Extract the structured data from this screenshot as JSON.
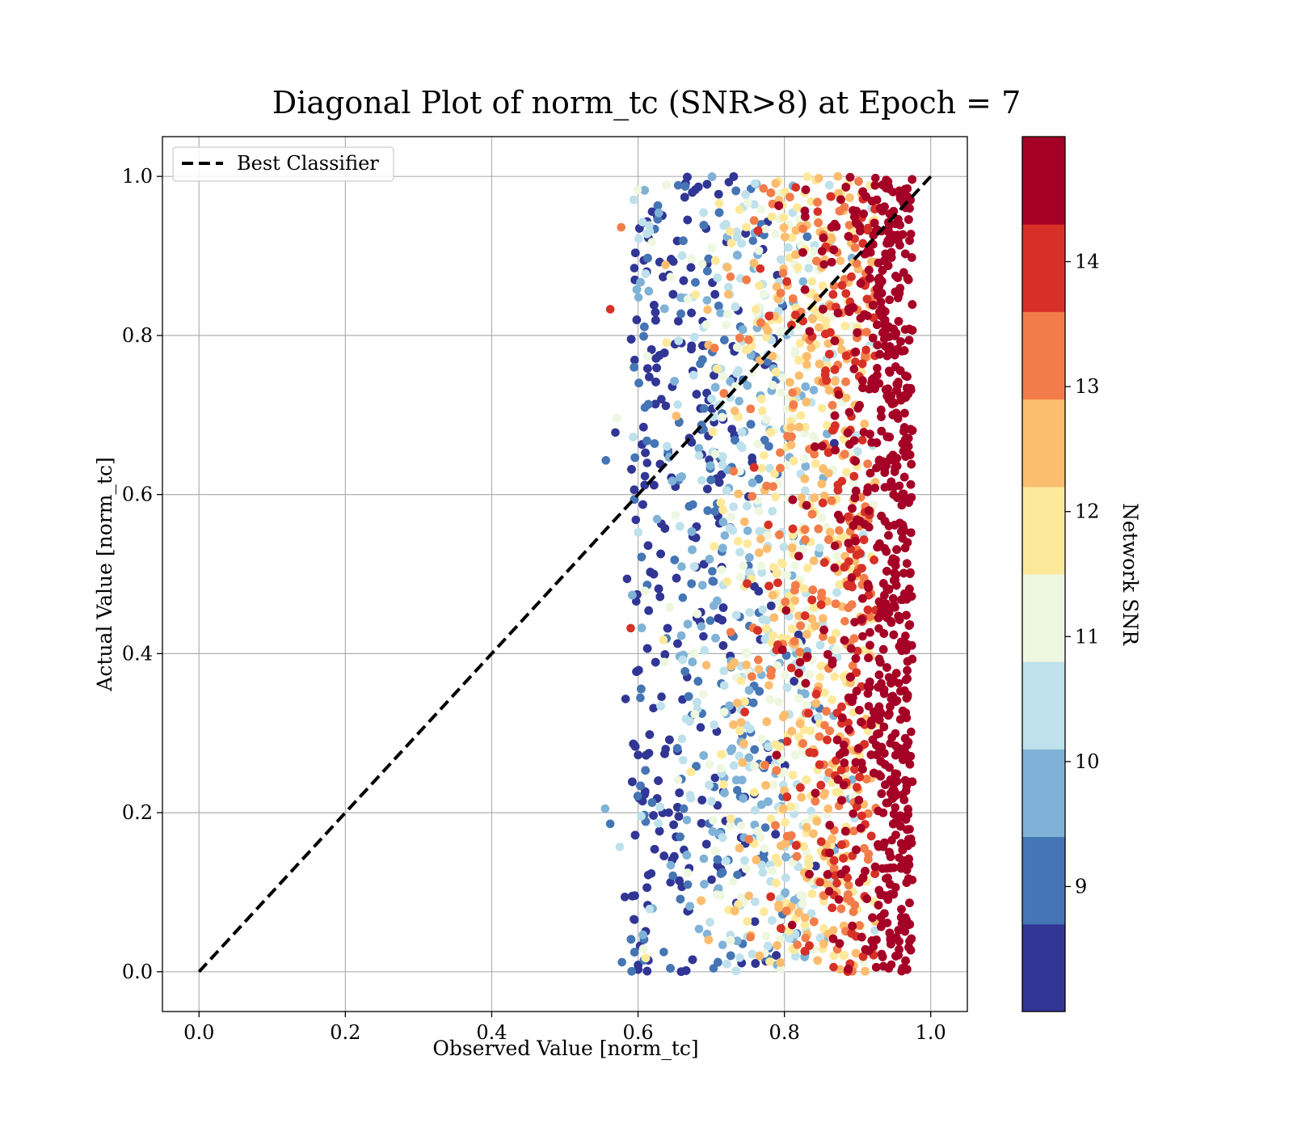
{
  "chart_data": {
    "type": "scatter",
    "title": "Diagonal Plot of norm_tc (SNR>8) at Epoch = 7",
    "xlabel": "Observed Value [norm_tc]",
    "ylabel": "Actual Value [norm_tc]",
    "xlim": [
      -0.05,
      1.05
    ],
    "ylim": [
      -0.05,
      1.05
    ],
    "xticks": [
      0.0,
      0.2,
      0.4,
      0.6,
      0.8,
      1.0
    ],
    "yticks": [
      0.0,
      0.2,
      0.4,
      0.6,
      0.8,
      1.0
    ],
    "xtick_labels": [
      "0.0",
      "0.2",
      "0.4",
      "0.6",
      "0.8",
      "1.0"
    ],
    "ytick_labels": [
      "0.0",
      "0.2",
      "0.4",
      "0.6",
      "0.8",
      "1.0"
    ],
    "grid": true,
    "legend": {
      "placement": "upper-left",
      "entries": [
        {
          "label": "Best Classifier",
          "style": "dashed",
          "color": "#000000"
        }
      ]
    },
    "reference_line": {
      "name": "Best Classifier",
      "x": [
        0.0,
        1.0
      ],
      "y": [
        0.0,
        1.0
      ],
      "color": "#000000",
      "style": "dashed"
    },
    "point_cloud": {
      "description_of_distribution": "dense cloud of points; observed x between ~0.56 and ~0.98, actual y between 0 and 1; color encodes Network SNR, increasing from left (low SNR, blue) to right (high SNR, dark red)",
      "x_range": [
        0.56,
        0.98
      ],
      "y_range": [
        0.0,
        1.0
      ],
      "outliers": [
        {
          "x": 0.562,
          "y": 0.833,
          "snr": 13.8
        },
        {
          "x": 0.577,
          "y": 0.936,
          "snr": 13.0
        },
        {
          "x": 0.556,
          "y": 0.643,
          "snr": 9.2
        },
        {
          "x": 0.569,
          "y": 0.678,
          "snr": 8.3
        },
        {
          "x": 0.571,
          "y": 0.696,
          "snr": 11.2
        },
        {
          "x": 0.555,
          "y": 0.205,
          "snr": 9.8
        },
        {
          "x": 0.562,
          "y": 0.186,
          "snr": 9.2
        },
        {
          "x": 0.575,
          "y": 0.157,
          "snr": 10.5
        },
        {
          "x": 0.582,
          "y": 0.094,
          "snr": 8.3
        },
        {
          "x": 0.578,
          "y": 0.012,
          "snr": 9.2
        },
        {
          "x": 0.585,
          "y": 0.494,
          "snr": 8.3
        },
        {
          "x": 0.59,
          "y": 0.432,
          "snr": 13.8
        },
        {
          "x": 0.583,
          "y": 0.343,
          "snr": 8.3
        }
      ]
    },
    "colorbar": {
      "label": "Network SNR",
      "tick_values": [
        9,
        10,
        11,
        12,
        13,
        14
      ],
      "tick_labels": [
        "9",
        "10",
        "11",
        "12",
        "13",
        "14"
      ],
      "range": [
        8.0,
        15.0
      ],
      "levels": [
        8.0,
        8.7,
        9.4,
        10.1,
        10.8,
        11.5,
        12.2,
        12.9,
        13.6,
        14.3,
        15.0
      ],
      "colors": [
        "#313695",
        "#4575b4",
        "#7fb2d6",
        "#bee1ec",
        "#eef7e0",
        "#fee99b",
        "#fcbd6e",
        "#f27d4a",
        "#d73127",
        "#a50026"
      ]
    }
  }
}
